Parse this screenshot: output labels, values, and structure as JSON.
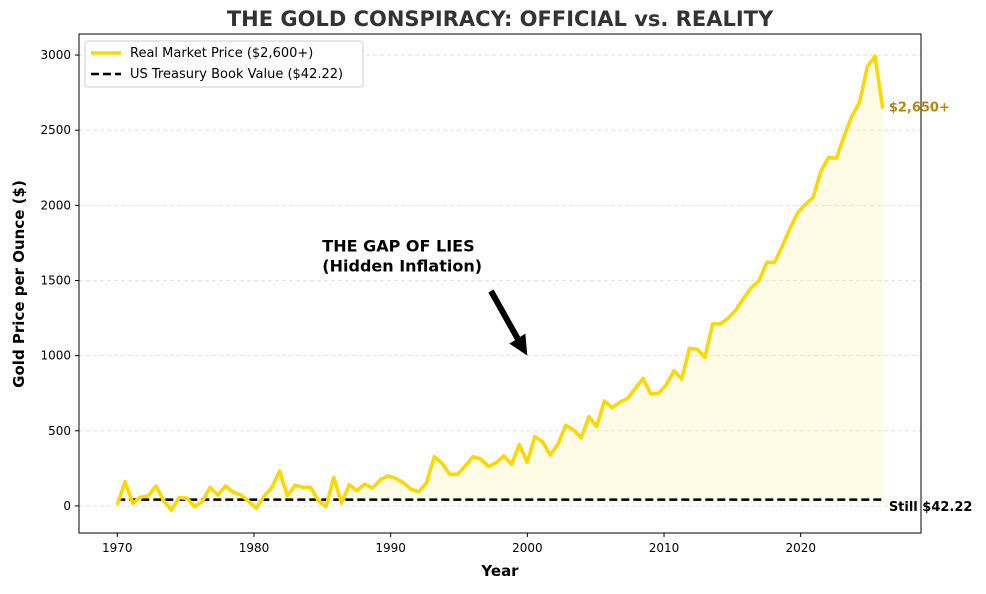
{
  "chart_data": {
    "type": "line",
    "title": "THE GOLD CONSPIRACY: OFFICIAL vs. REALITY",
    "xlabel": "Year",
    "ylabel": "Gold Price per Ounce ($)",
    "xlim": [
      1967.2,
      2028.8
    ],
    "ylim": [
      -180,
      3140
    ],
    "x_start": 1970,
    "x_end": 2026,
    "xticks": [
      1970,
      1980,
      1990,
      2000,
      2010,
      2020
    ],
    "yticks": [
      0,
      500,
      1000,
      1500,
      2000,
      2500,
      3000
    ],
    "grid": "y-dashed",
    "legend_placement": "top-left",
    "series": [
      {
        "name": "Real Market Price ($2,600+)",
        "color": "#FFD700",
        "style": "solid",
        "values": [
          7,
          162,
          18,
          58,
          67,
          133,
          35,
          -27,
          55,
          51,
          -4,
          29,
          124,
          73,
          133,
          91,
          73,
          29,
          -15,
          67,
          124,
          233,
          67,
          138,
          124,
          124,
          35,
          -4,
          191,
          18,
          142,
          102,
          146,
          120,
          173,
          200,
          184,
          155,
          111,
          95,
          155,
          328,
          284,
          211,
          211,
          266,
          328,
          313,
          262,
          288,
          333,
          277,
          410,
          291,
          461,
          428,
          339,
          412,
          537,
          506,
          454,
          594,
          528,
          698,
          654,
          690,
          716,
          783,
          849,
          745,
          750,
          805,
          900,
          845,
          1049,
          1042,
          989,
          1211,
          1211,
          1249,
          1304,
          1382,
          1452,
          1499,
          1621,
          1619,
          1730,
          1847,
          1951,
          2007,
          2053,
          2228,
          2319,
          2313,
          2461,
          2594,
          2685,
          2922,
          2993,
          2645
        ]
      },
      {
        "name": "US Treasury Book Value ($42.22)",
        "color": "#000000",
        "style": "dashed",
        "constant": 42.22
      }
    ],
    "fill_between": {
      "color": "#FFD700",
      "opacity": 0.1
    },
    "annotations": [
      {
        "text_lines": [
          "THE GAP OF LIES",
          "(Hidden Inflation)"
        ],
        "x": 1985,
        "y": 1560,
        "arrow_to": [
          2000,
          1000
        ],
        "color": "#000000"
      },
      {
        "text": "$2,650+",
        "x": 2026.3,
        "y": 2650,
        "color": "#B8860B"
      },
      {
        "text": "Still $42.22",
        "x": 2026.3,
        "y": 0,
        "color": "#000000"
      }
    ]
  }
}
